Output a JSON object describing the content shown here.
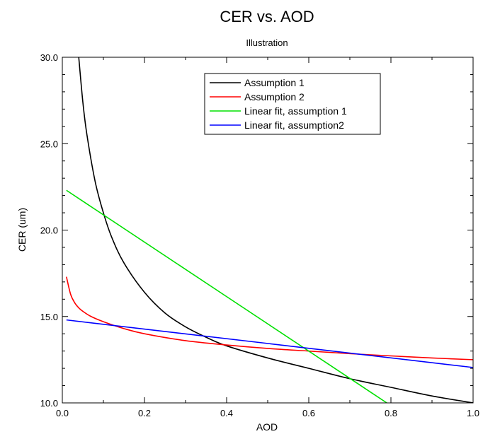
{
  "chart_data": {
    "type": "line",
    "title": "CER vs. AOD",
    "subtitle": "Illustration",
    "xlabel": "AOD",
    "ylabel": "CER (um)",
    "xlim": [
      0.0,
      1.0
    ],
    "ylim": [
      10.0,
      30.0
    ],
    "xticks": [
      "0.0",
      "0.2",
      "0.4",
      "0.6",
      "0.8",
      "1.0"
    ],
    "yticks": [
      "10.0",
      "15.0",
      "20.0",
      "25.0",
      "30.0"
    ],
    "grid": false,
    "legend_position": "top-right",
    "series": [
      {
        "name": "Assumption 1",
        "color": "#000000",
        "x": [
          0.04,
          0.05,
          0.06,
          0.08,
          0.1,
          0.12,
          0.15,
          0.2,
          0.25,
          0.3,
          0.35,
          0.4,
          0.5,
          0.6,
          0.7,
          0.8,
          0.9,
          1.0
        ],
        "y": [
          30.0,
          27.4,
          25.5,
          22.8,
          21.0,
          19.6,
          18.1,
          16.4,
          15.2,
          14.4,
          13.8,
          13.3,
          12.6,
          12.0,
          11.4,
          10.9,
          10.4,
          10.0
        ]
      },
      {
        "name": "Assumption 2",
        "color": "#ff0000",
        "x": [
          0.01,
          0.02,
          0.03,
          0.04,
          0.05,
          0.07,
          0.1,
          0.15,
          0.2,
          0.3,
          0.4,
          0.5,
          0.6,
          0.7,
          0.8,
          0.9,
          1.0
        ],
        "y": [
          17.3,
          16.3,
          15.8,
          15.5,
          15.3,
          15.0,
          14.7,
          14.3,
          14.0,
          13.6,
          13.35,
          13.15,
          13.0,
          12.85,
          12.72,
          12.6,
          12.5
        ]
      },
      {
        "name": "Linear fit, assumption 1",
        "color": "#00e000",
        "x": [
          0.01,
          0.79
        ],
        "y": [
          22.3,
          10.0
        ]
      },
      {
        "name": "Linear fit, assumption2",
        "color": "#0000ff",
        "x": [
          0.01,
          1.0
        ],
        "y": [
          14.8,
          12.05
        ]
      }
    ]
  }
}
